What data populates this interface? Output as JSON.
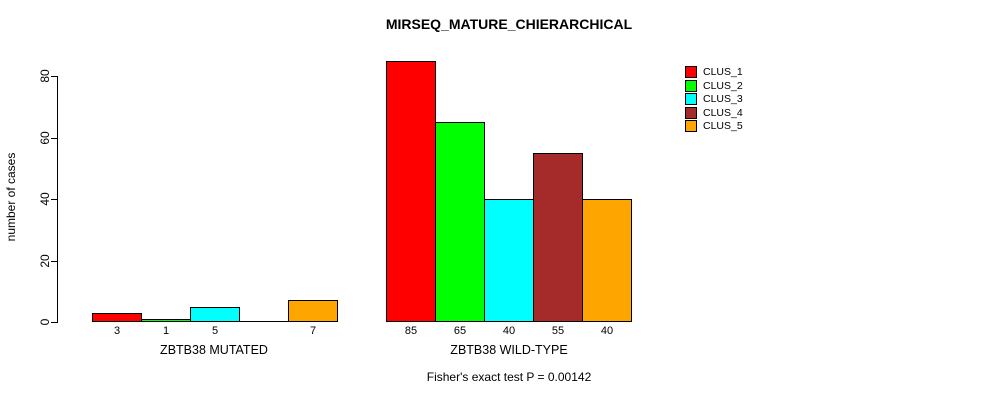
{
  "chart_data": {
    "type": "bar",
    "title": "MIRSEQ_MATURE_CHIERARCHICAL",
    "ylabel": "number of cases",
    "ylim": [
      0,
      85
    ],
    "yticks": [
      0,
      20,
      40,
      60,
      80
    ],
    "grid": false,
    "legend_position": "top-right",
    "categories": [
      "ZBTB38 MUTATED",
      "ZBTB38 WILD-TYPE"
    ],
    "series": [
      {
        "name": "CLUS_1",
        "color": "#ff0000",
        "values": [
          3,
          85
        ]
      },
      {
        "name": "CLUS_2",
        "color": "#00ff00",
        "values": [
          1,
          65
        ]
      },
      {
        "name": "CLUS_3",
        "color": "#00ffff",
        "values": [
          5,
          40
        ]
      },
      {
        "name": "CLUS_4",
        "color": "#a52a2a",
        "values": [
          0,
          55
        ]
      },
      {
        "name": "CLUS_5",
        "color": "#ffa500",
        "values": [
          7,
          40
        ]
      }
    ],
    "bar_value_labels": [
      [
        "3",
        "1",
        "5",
        "",
        "7"
      ],
      [
        "85",
        "65",
        "40",
        "55",
        "40"
      ]
    ],
    "annotation": "Fisher's exact test P = 0.00142"
  }
}
